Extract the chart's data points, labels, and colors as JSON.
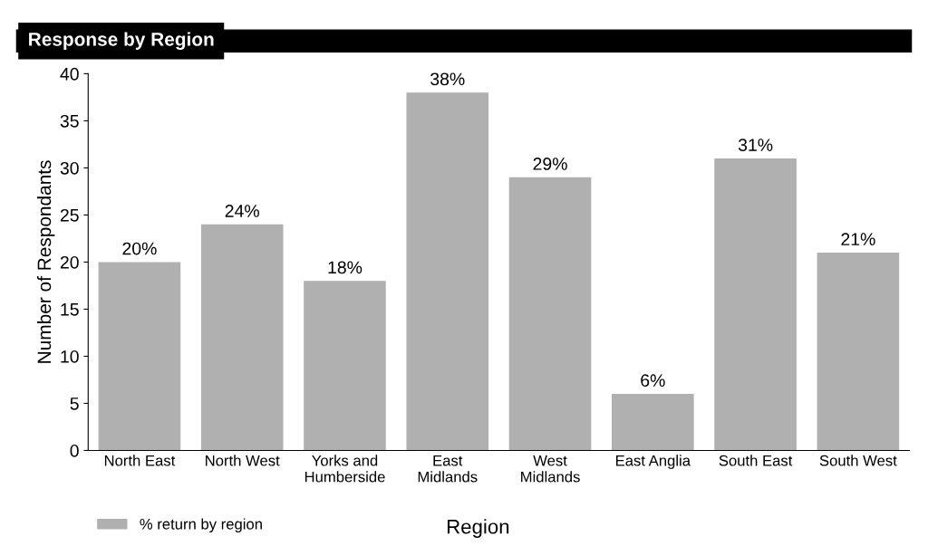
{
  "chart_data": {
    "type": "bar",
    "title": "Response by Region",
    "xlabel": "Region",
    "ylabel": "Number of Respondants",
    "categories": [
      "North East",
      "North West",
      "Yorks and\nHumberside",
      "East\nMidlands",
      "West\nMidlands",
      "East Anglia",
      "South East",
      "South West"
    ],
    "series": [
      {
        "name": "% return by region",
        "color": "#b0b0b0",
        "values": [
          20,
          24,
          18,
          38,
          29,
          6,
          31,
          21
        ],
        "value_labels": [
          "20%",
          "24%",
          "18%",
          "38%",
          "29%",
          "6%",
          "31%",
          "21%"
        ]
      }
    ],
    "ylim": [
      0,
      40
    ],
    "yticks": [
      0,
      5,
      10,
      15,
      20,
      25,
      30,
      35,
      40
    ],
    "grid": false,
    "legend": "bottom left"
  }
}
